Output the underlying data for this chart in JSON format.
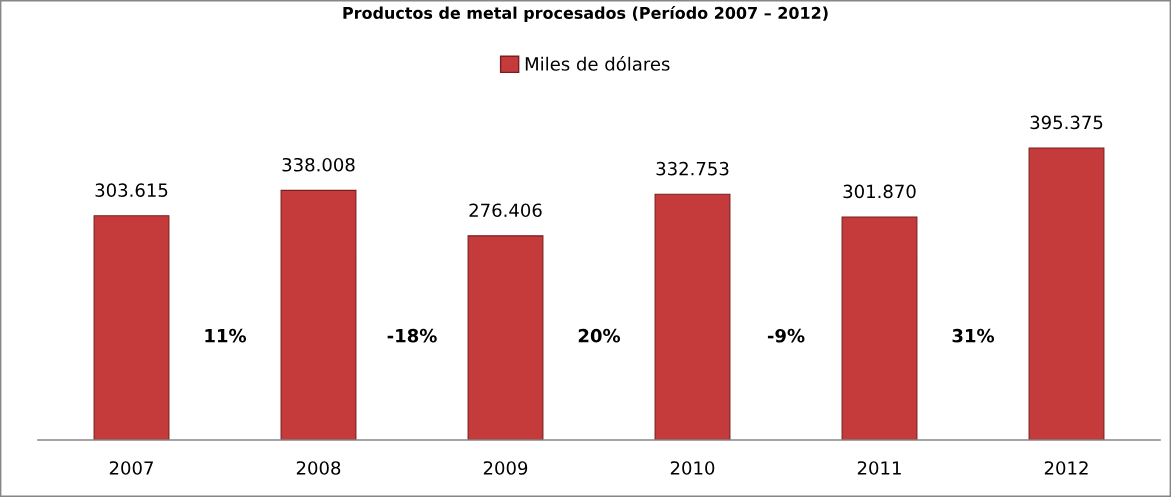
{
  "chart_data": {
    "type": "bar",
    "title": "Productos de metal procesados (Período 2007 – 2012)",
    "categories": [
      "2007",
      "2008",
      "2009",
      "2010",
      "2011",
      "2012"
    ],
    "series": [
      {
        "name": "Miles de dólares",
        "color": "#c53b3b",
        "values": [
          303615,
          338008,
          276406,
          332753,
          301870,
          395375
        ],
        "value_labels": [
          "303.615",
          "338.008",
          "276.406",
          "332.753",
          "301.870",
          "395.375"
        ]
      }
    ],
    "annotations": [
      "11%",
      "-18%",
      "20%",
      "-9%",
      "31%"
    ],
    "legend": "top",
    "grid": false
  }
}
